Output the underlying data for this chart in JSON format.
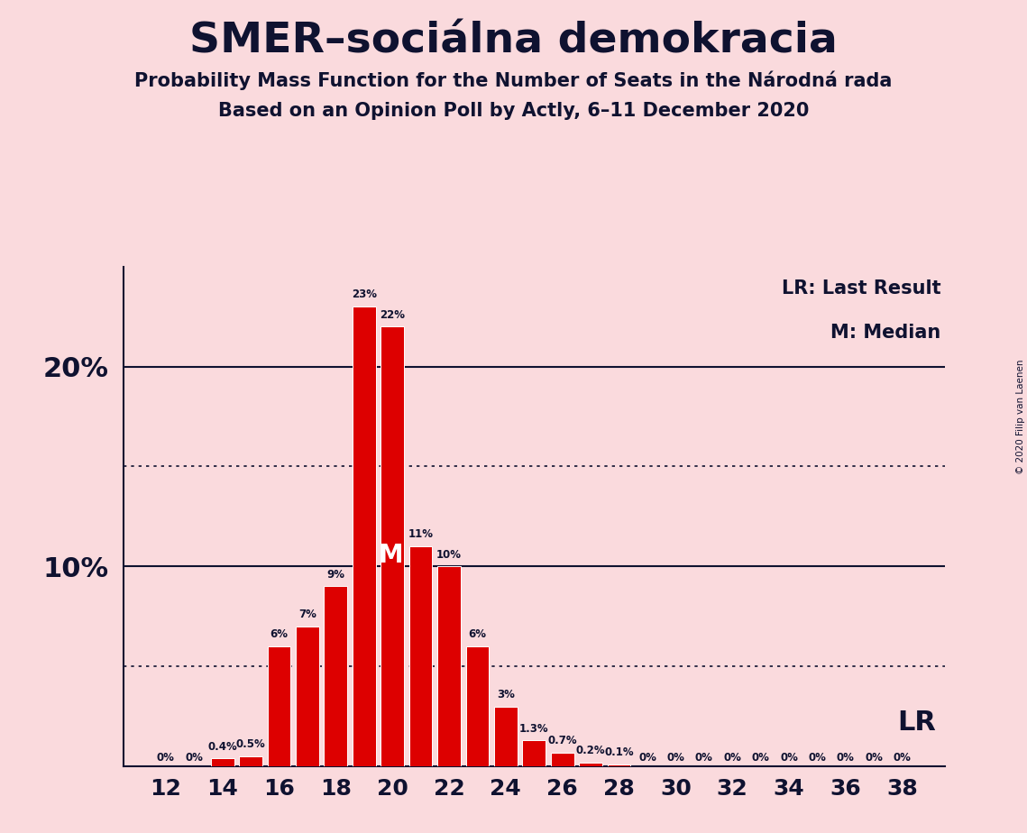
{
  "title": "SMER–sociálna demokracia",
  "subtitle1": "Probability Mass Function for the Number of Seats in the Národná rada",
  "subtitle2": "Based on an Opinion Poll by Actly, 6–11 December 2020",
  "copyright": "© 2020 Filip van Laenen",
  "seats": [
    12,
    13,
    14,
    15,
    16,
    17,
    18,
    19,
    20,
    21,
    22,
    23,
    24,
    25,
    26,
    27,
    28,
    29,
    30,
    31,
    32,
    33,
    34,
    35,
    36,
    37,
    38
  ],
  "values": [
    0.0,
    0.0,
    0.4,
    0.5,
    6.0,
    7.0,
    9.0,
    23.0,
    22.0,
    11.0,
    10.0,
    6.0,
    3.0,
    1.3,
    0.7,
    0.2,
    0.1,
    0.0,
    0.0,
    0.0,
    0.0,
    0.0,
    0.0,
    0.0,
    0.0,
    0.0,
    0.0
  ],
  "labels": [
    "0%",
    "0%",
    "0.4%",
    "0.5%",
    "6%",
    "7%",
    "9%",
    "23%",
    "22%",
    "11%",
    "10%",
    "6%",
    "3%",
    "1.3%",
    "0.7%",
    "0.2%",
    "0.1%",
    "0%",
    "0%",
    "0%",
    "0%",
    "0%",
    "0%",
    "0%",
    "0%",
    "0%",
    "0%"
  ],
  "bar_color": "#DD0000",
  "background_color": "#FADADD",
  "text_color": "#0f1230",
  "median_seat": 20,
  "lr_seat": 38,
  "ylim_max": 25,
  "solid_gridlines": [
    10.0,
    20.0
  ],
  "dotted_gridlines": [
    5.0,
    15.0
  ],
  "legend_lr": "LR: Last Result",
  "legend_m": "M: Median"
}
